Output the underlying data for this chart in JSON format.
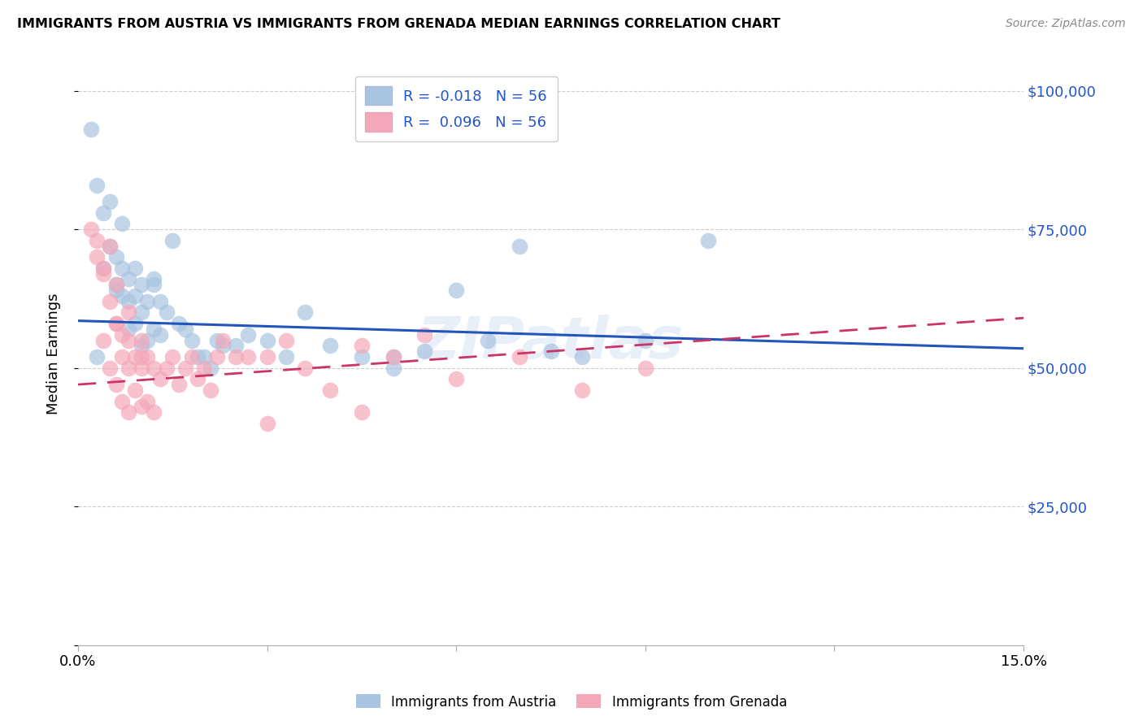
{
  "title": "IMMIGRANTS FROM AUSTRIA VS IMMIGRANTS FROM GRENADA MEDIAN EARNINGS CORRELATION CHART",
  "source": "Source: ZipAtlas.com",
  "ylabel_label": "Median Earnings",
  "xlim": [
    0.0,
    0.15
  ],
  "ylim": [
    0,
    105000
  ],
  "yticks": [
    0,
    25000,
    50000,
    75000,
    100000
  ],
  "xticks": [
    0.0,
    0.03,
    0.06,
    0.09,
    0.12,
    0.15
  ],
  "xtick_labels": [
    "0.0%",
    "",
    "",
    "",
    "",
    "15.0%"
  ],
  "ytick_labels": [
    "",
    "$25,000",
    "$50,000",
    "$75,000",
    "$100,000"
  ],
  "austria_color": "#a8c4e0",
  "grenada_color": "#f4a7b9",
  "austria_line_color": "#2255bb",
  "grenada_line_color": "#cc3366",
  "watermark": "ZIPatlas",
  "R_austria": -0.018,
  "R_grenada": 0.096,
  "N_austria": 56,
  "N_grenada": 56,
  "legend_label_austria": "Immigrants from Austria",
  "legend_label_grenada": "Immigrants from Grenada",
  "austria_line": [
    0.0,
    58500,
    0.15,
    53500
  ],
  "grenada_line": [
    0.0,
    47000,
    0.15,
    59000
  ],
  "austria_x": [
    0.002,
    0.003,
    0.004,
    0.004,
    0.005,
    0.005,
    0.006,
    0.006,
    0.007,
    0.007,
    0.007,
    0.008,
    0.008,
    0.008,
    0.009,
    0.009,
    0.01,
    0.01,
    0.01,
    0.011,
    0.011,
    0.012,
    0.012,
    0.013,
    0.013,
    0.014,
    0.015,
    0.016,
    0.017,
    0.018,
    0.019,
    0.02,
    0.021,
    0.022,
    0.023,
    0.025,
    0.027,
    0.03,
    0.033,
    0.036,
    0.04,
    0.045,
    0.05,
    0.055,
    0.06,
    0.065,
    0.07,
    0.075,
    0.08,
    0.09,
    0.003,
    0.006,
    0.009,
    0.012,
    0.05,
    0.1
  ],
  "austria_y": [
    93000,
    83000,
    78000,
    68000,
    80000,
    72000,
    70000,
    65000,
    76000,
    68000,
    63000,
    66000,
    62000,
    57000,
    68000,
    58000,
    65000,
    60000,
    54000,
    62000,
    55000,
    66000,
    57000,
    62000,
    56000,
    60000,
    73000,
    58000,
    57000,
    55000,
    52000,
    52000,
    50000,
    55000,
    54000,
    54000,
    56000,
    55000,
    52000,
    60000,
    54000,
    52000,
    50000,
    53000,
    64000,
    55000,
    72000,
    53000,
    52000,
    55000,
    52000,
    64000,
    63000,
    65000,
    52000,
    73000
  ],
  "grenada_x": [
    0.002,
    0.003,
    0.003,
    0.004,
    0.004,
    0.005,
    0.005,
    0.005,
    0.006,
    0.006,
    0.006,
    0.007,
    0.007,
    0.007,
    0.008,
    0.008,
    0.008,
    0.009,
    0.009,
    0.01,
    0.01,
    0.01,
    0.011,
    0.011,
    0.012,
    0.012,
    0.013,
    0.014,
    0.015,
    0.016,
    0.017,
    0.018,
    0.019,
    0.02,
    0.021,
    0.022,
    0.023,
    0.025,
    0.027,
    0.03,
    0.033,
    0.036,
    0.04,
    0.045,
    0.05,
    0.055,
    0.06,
    0.07,
    0.08,
    0.09,
    0.004,
    0.006,
    0.008,
    0.01,
    0.03,
    0.045
  ],
  "grenada_y": [
    75000,
    73000,
    70000,
    68000,
    55000,
    72000,
    62000,
    50000,
    65000,
    58000,
    47000,
    56000,
    52000,
    44000,
    55000,
    50000,
    42000,
    52000,
    46000,
    55000,
    50000,
    43000,
    52000,
    44000,
    50000,
    42000,
    48000,
    50000,
    52000,
    47000,
    50000,
    52000,
    48000,
    50000,
    46000,
    52000,
    55000,
    52000,
    52000,
    52000,
    55000,
    50000,
    46000,
    54000,
    52000,
    56000,
    48000,
    52000,
    46000,
    50000,
    67000,
    58000,
    60000,
    52000,
    40000,
    42000
  ]
}
